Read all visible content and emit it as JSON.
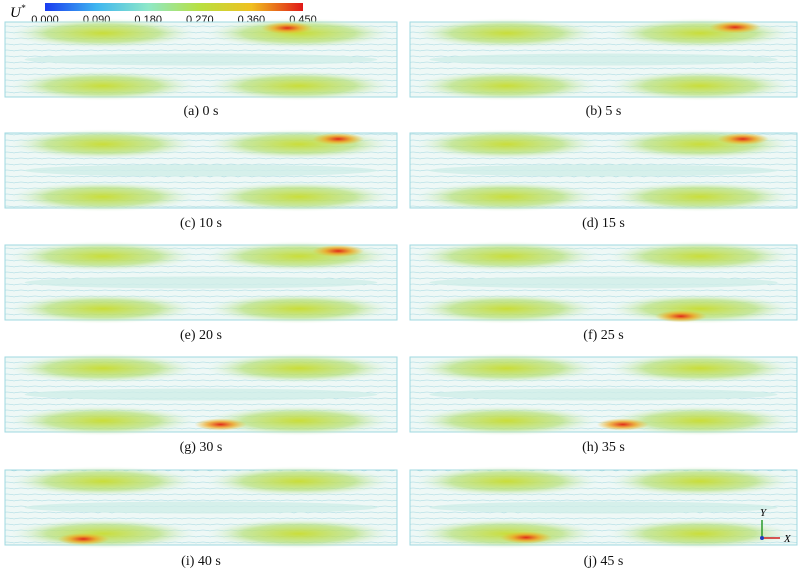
{
  "legend": {
    "symbol": "U",
    "superscript": "*",
    "ticks": [
      "0.000",
      "0.090",
      "0.180",
      "0.270",
      "0.360",
      "0.450"
    ]
  },
  "panels": [
    {
      "caption": "(a) 0 s"
    },
    {
      "caption": "(b) 5 s"
    },
    {
      "caption": "(c) 10 s"
    },
    {
      "caption": "(d) 15 s"
    },
    {
      "caption": "(e) 20 s"
    },
    {
      "caption": "(f) 25 s"
    },
    {
      "caption": "(g) 30 s"
    },
    {
      "caption": "(h) 35 s"
    },
    {
      "caption": "(i) 40 s"
    },
    {
      "caption": "(j) 45 s"
    }
  ],
  "axes": {
    "y": "Y",
    "x": "X"
  }
}
